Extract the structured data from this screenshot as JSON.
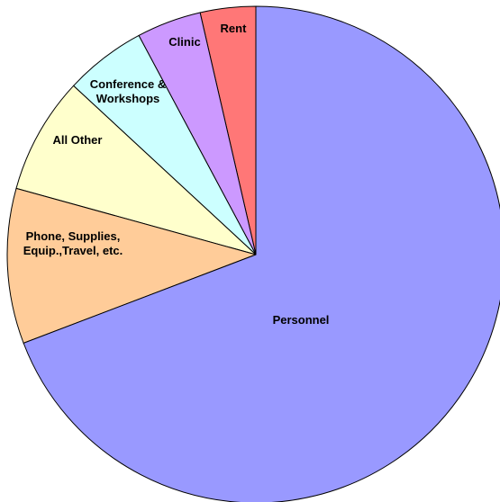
{
  "chart_data": {
    "type": "pie",
    "title": "",
    "legend": "none",
    "slices": [
      {
        "label_lines": [
          "Rent"
        ],
        "value": 3.6,
        "color": "#ff7777"
      },
      {
        "label_lines": [
          "Clinic"
        ],
        "value": 4.2,
        "color": "#cc99ff"
      },
      {
        "label_lines": [
          "Conference  &",
          "Workshops"
        ],
        "value": 5.3,
        "color": "#ccffff"
      },
      {
        "label_lines": [
          "All Other"
        ],
        "value": 7.6,
        "color": "#ffffcc"
      },
      {
        "label_lines": [
          "Phone, Supplies,",
          "Equip.,Travel, etc."
        ],
        "value": 10.1,
        "color": "#ffcc99"
      },
      {
        "label_lines": [
          "Personnel"
        ],
        "value": 69.2,
        "color": "#9999ff"
      }
    ]
  }
}
